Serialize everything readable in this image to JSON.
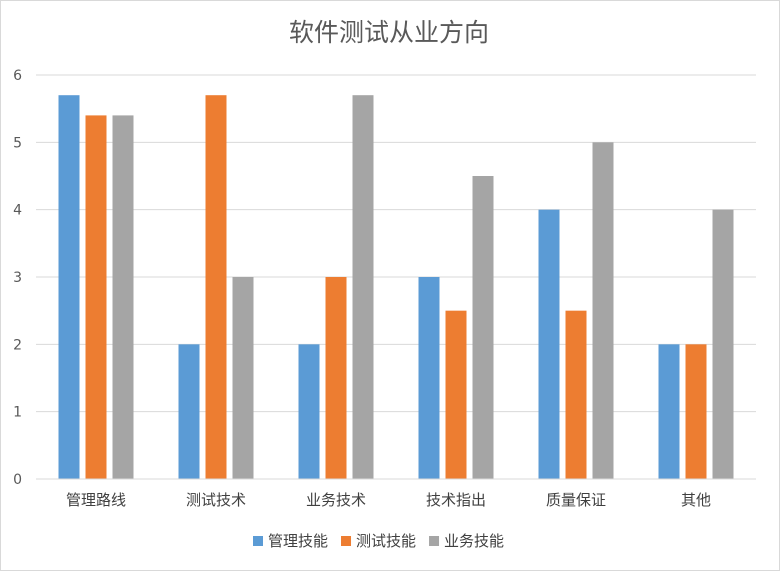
{
  "chart_data": {
    "type": "bar",
    "title": "软件测试从业方向",
    "xlabel": "",
    "ylabel": "",
    "ylim": [
      0,
      6
    ],
    "yticks": [
      0,
      1,
      2,
      3,
      4,
      5,
      6
    ],
    "grid": true,
    "legend_position": "bottom",
    "categories": [
      "管理路线",
      "测试技术",
      "业务技术",
      "技术指出",
      "质量保证",
      "其他"
    ],
    "series": [
      {
        "name": "管理技能",
        "color": "#5b9bd5",
        "values": [
          5.7,
          2,
          2,
          3,
          4,
          2
        ]
      },
      {
        "name": "测试技能",
        "color": "#ed7d31",
        "values": [
          5.4,
          5.7,
          3,
          2.5,
          2.5,
          2
        ]
      },
      {
        "name": "业务技能",
        "color": "#a5a5a5",
        "values": [
          5.4,
          3,
          5.7,
          4.5,
          5,
          4
        ]
      }
    ]
  }
}
